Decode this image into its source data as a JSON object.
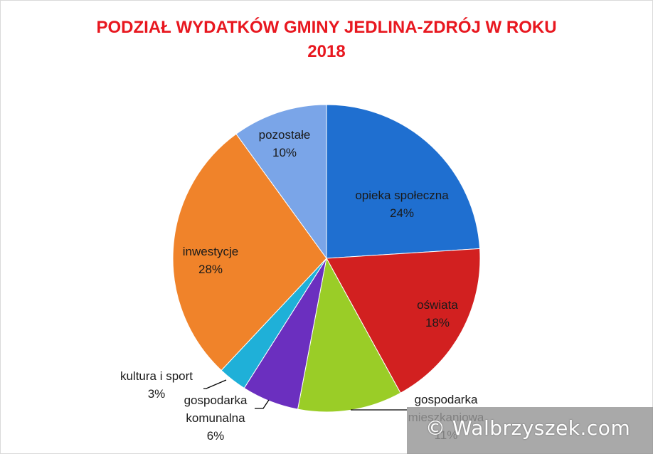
{
  "chart_data": {
    "type": "pie",
    "title": "PODZIAŁ WYDATKÓW GMINY JEDLINA-ZDRÓJ  W ROKU 2018",
    "title_lines": [
      "PODZIAŁ WYDATKÓW GMINY JEDLINA-ZDRÓJ  W ROKU",
      "2018"
    ],
    "slices": [
      {
        "label": "opieka społeczna",
        "value": 24,
        "value_label": "24%",
        "color": "#1f6fd0"
      },
      {
        "label": "oświata",
        "value": 18,
        "value_label": "18%",
        "color": "#d22020"
      },
      {
        "label": "gospodarka mieszkaniowa",
        "label_lines": [
          "gospodarka",
          "mieszkaniowa"
        ],
        "value": 11,
        "value_label": "11%",
        "color": "#9acd27"
      },
      {
        "label": "gospodarka komunalna",
        "label_lines": [
          "gospodarka",
          "komunalna"
        ],
        "value": 6,
        "value_label": "6%",
        "color": "#6b2fbf"
      },
      {
        "label": "kultura i sport",
        "value": 3,
        "value_label": "3%",
        "color": "#1fb0d8"
      },
      {
        "label": "inwestycje",
        "value": 28,
        "value_label": "28%",
        "color": "#f0832a"
      },
      {
        "label": "pozostałe",
        "value": 10,
        "value_label": "10%",
        "color": "#7aa5e8"
      }
    ],
    "legend": "none"
  },
  "watermark": "© Walbrzyszek.com",
  "colors": {
    "title": "#e8171f",
    "text": "#1a1a1a"
  }
}
